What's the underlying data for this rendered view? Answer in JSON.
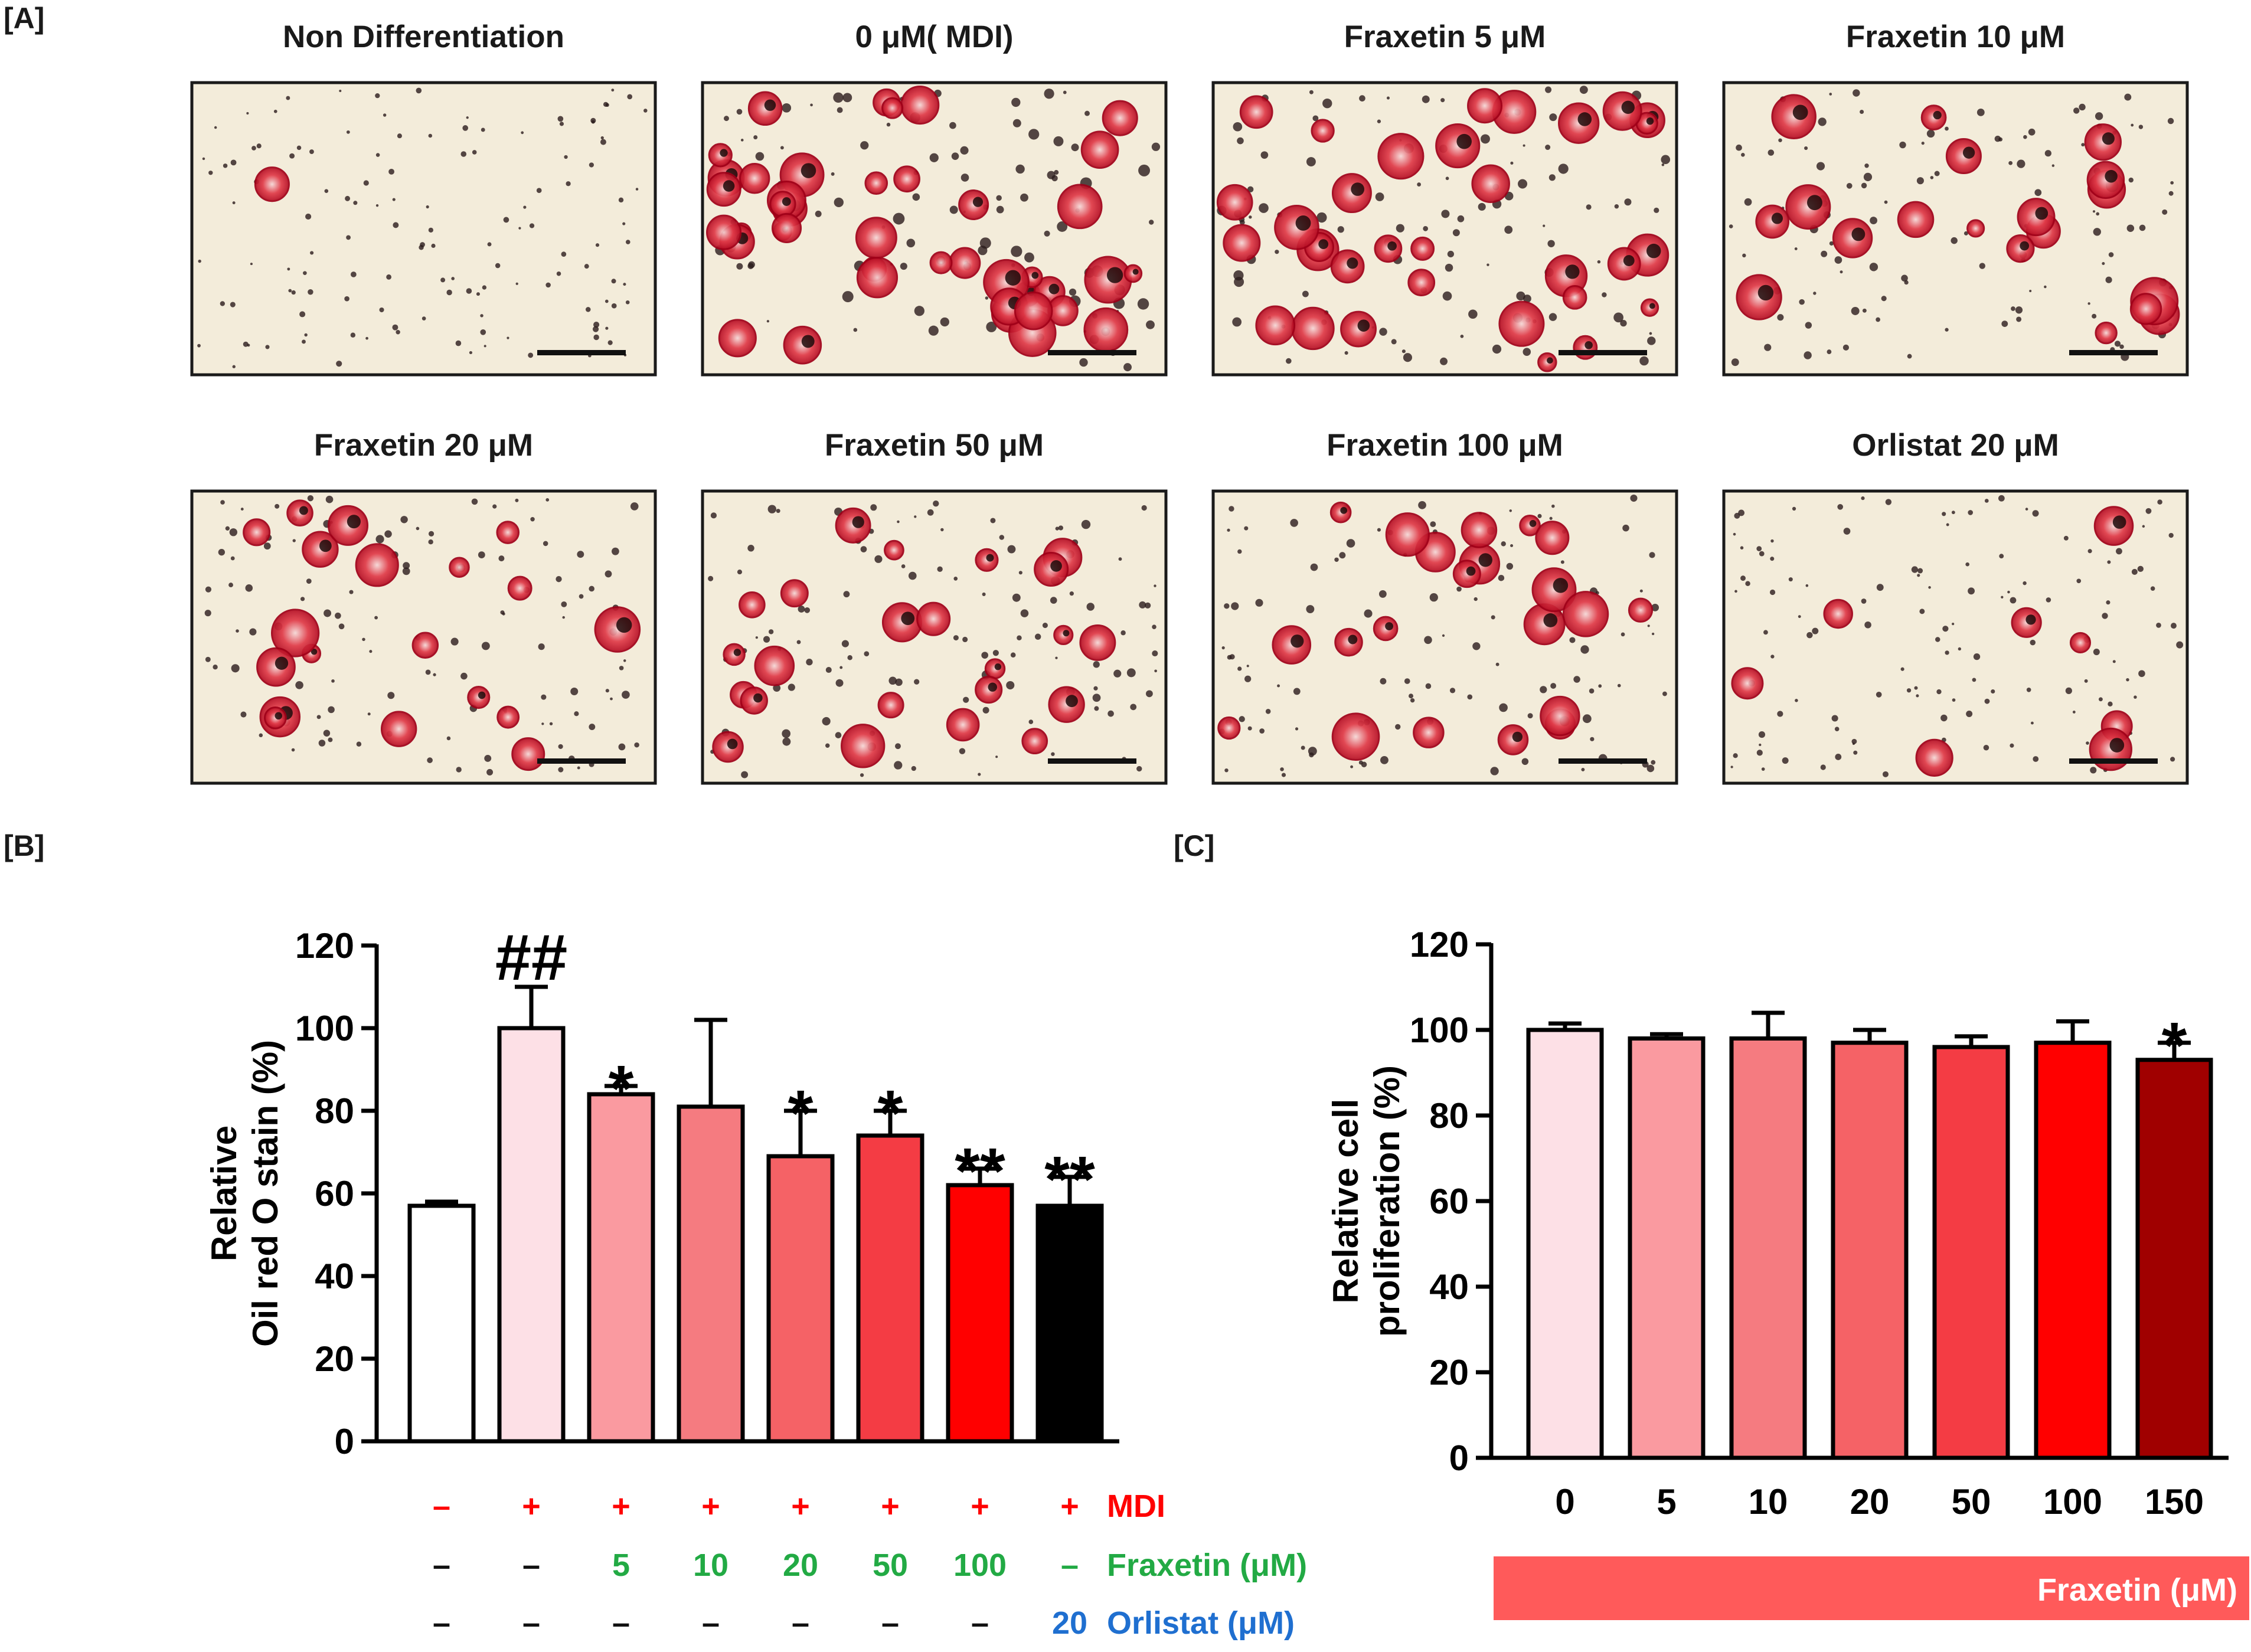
{
  "panel_labels": {
    "a": "[A]",
    "b": "[B]",
    "c": "[C]"
  },
  "colors": {
    "frame": "#1a1a1a",
    "background_cream": "#f3ecda",
    "stain_red": "#c8102e",
    "mdi": "#ff0000",
    "fraxetin": "#22aa44",
    "orlistat": "#1f6fd0",
    "fraxetin_banner": "#ff5a5a",
    "neutral": "#111111"
  },
  "micrographs": [
    {
      "title": "Non Differentiation",
      "stain": 0.02
    },
    {
      "title": "0 μM( MDI)",
      "stain": 1.0
    },
    {
      "title": "Fraxetin 5 μM",
      "stain": 0.75
    },
    {
      "title": "Fraxetin 10 μM",
      "stain": 0.45
    },
    {
      "title": "Fraxetin 20 μM",
      "stain": 0.45
    },
    {
      "title": "Fraxetin 50 μM",
      "stain": 0.55
    },
    {
      "title": "Fraxetin 100 μM",
      "stain": 0.5
    },
    {
      "title": "Orlistat 20 μM",
      "stain": 0.2
    }
  ],
  "chart_data": [
    {
      "type": "bar",
      "panel": "B",
      "ylabel_lines": [
        "Relative",
        "Oil red O stain (%)"
      ],
      "ylim": [
        0,
        120
      ],
      "yticks": [
        0,
        20,
        40,
        60,
        80,
        100,
        120
      ],
      "values": [
        57,
        100,
        84,
        81,
        69,
        74,
        62,
        57
      ],
      "errors": [
        1,
        10,
        2,
        21,
        11,
        6,
        4,
        7
      ],
      "bar_colors": [
        "#ffffff",
        "#fde0e6",
        "#fa9aa0",
        "#f57b80",
        "#f56266",
        "#f43c44",
        "#ff0000",
        "#000000"
      ],
      "annotations": [
        "",
        "##",
        "*",
        "",
        "*",
        "*",
        "**",
        "**"
      ],
      "conditions": [
        {
          "label": "MDI",
          "color_key": "mdi",
          "values": [
            "–",
            "+",
            "+",
            "+",
            "+",
            "+",
            "+",
            "+"
          ],
          "value_color_key": "mdi"
        },
        {
          "label": "Fraxetin (μM)",
          "color_key": "fraxetin",
          "values": [
            "–",
            "–",
            "5",
            "10",
            "20",
            "50",
            "100",
            "–"
          ],
          "value_color_key": "fraxetin"
        },
        {
          "label": "Orlistat (μM)",
          "color_key": "orlistat",
          "values": [
            "–",
            "–",
            "–",
            "–",
            "–",
            "–",
            "–",
            "20"
          ],
          "value_color_key": "orlistat"
        }
      ]
    },
    {
      "type": "bar",
      "panel": "C",
      "ylabel_lines": [
        "Relative cell",
        "proliferation (%)"
      ],
      "ylim": [
        0,
        120
      ],
      "yticks": [
        0,
        20,
        40,
        60,
        80,
        100,
        120
      ],
      "categories": [
        "0",
        "5",
        "10",
        "20",
        "50",
        "100",
        "150"
      ],
      "values": [
        100,
        98,
        98,
        97,
        96,
        97,
        93
      ],
      "errors": [
        1.5,
        1,
        6,
        3,
        2.5,
        5,
        4
      ],
      "bar_colors": [
        "#fde0e6",
        "#fa9aa0",
        "#f57b80",
        "#f56266",
        "#f43c44",
        "#ff0000",
        "#a00000"
      ],
      "annotations": [
        "",
        "",
        "",
        "",
        "",
        "",
        "*"
      ],
      "banner_label": "Fraxetin (μM)"
    }
  ]
}
